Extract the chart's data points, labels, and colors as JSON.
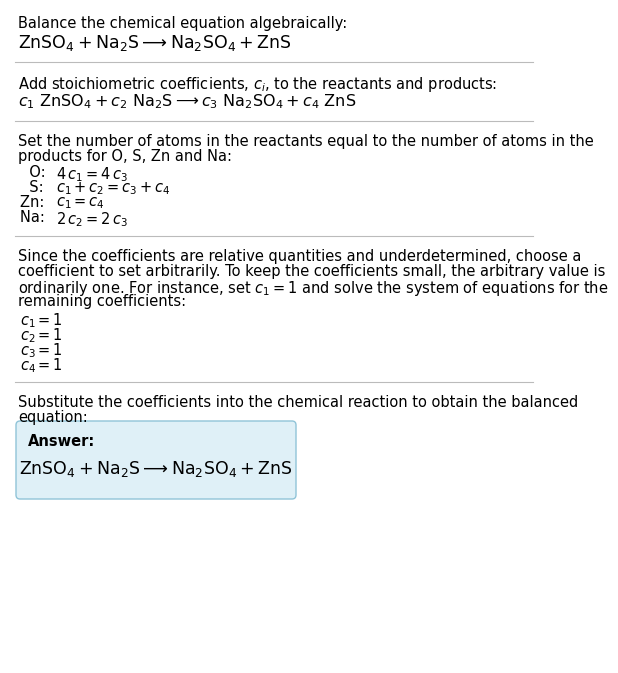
{
  "bg_color": "#ffffff",
  "text_color": "#000000",
  "answer_box_bg": "#dff0f7",
  "answer_box_border": "#90c4d8",
  "section1_header": "Balance the chemical equation algebraically:",
  "section1_eq": "$\\mathrm{ZnSO_4 + Na_2S} \\longrightarrow \\mathrm{Na_2SO_4 + ZnS}$",
  "section2_header": "Add stoichiometric coefficients, $c_i$, to the reactants and products:",
  "section2_eq": "$c_1\\ \\mathrm{ZnSO_4} + c_2\\ \\mathrm{Na_2S} \\longrightarrow c_3\\ \\mathrm{Na_2SO_4} + c_4\\ \\mathrm{ZnS}$",
  "section3_header1": "Set the number of atoms in the reactants equal to the number of atoms in the",
  "section3_header2": "products for O, S, Zn and Na:",
  "section3_lines": [
    [
      "  O: ",
      "$4\\,c_1 = 4\\,c_3$"
    ],
    [
      "  S: ",
      "$c_1 + c_2 = c_3 + c_4$"
    ],
    [
      "Zn: ",
      "$c_1 = c_4$"
    ],
    [
      "Na: ",
      "$2\\,c_2 = 2\\,c_3$"
    ]
  ],
  "section4_header1": "Since the coefficients are relative quantities and underdetermined, choose a",
  "section4_header2": "coefficient to set arbitrarily. To keep the coefficients small, the arbitrary value is",
  "section4_header3": "ordinarily one. For instance, set $c_1 = 1$ and solve the system of equations for the",
  "section4_header4": "remaining coefficients:",
  "section4_lines": [
    "$c_1 = 1$",
    "$c_2 = 1$",
    "$c_3 = 1$",
    "$c_4 = 1$"
  ],
  "section5_header1": "Substitute the coefficients into the chemical reaction to obtain the balanced",
  "section5_header2": "equation:",
  "answer_label": "Answer:",
  "answer_eq": "$\\mathrm{ZnSO_4 + Na_2S} \\longrightarrow \\mathrm{Na_2SO_4 + ZnS}$",
  "sep_color": "#bbbbbb",
  "fs_body": 10.5,
  "fs_math": 11.5,
  "fs_answer": 12.5
}
